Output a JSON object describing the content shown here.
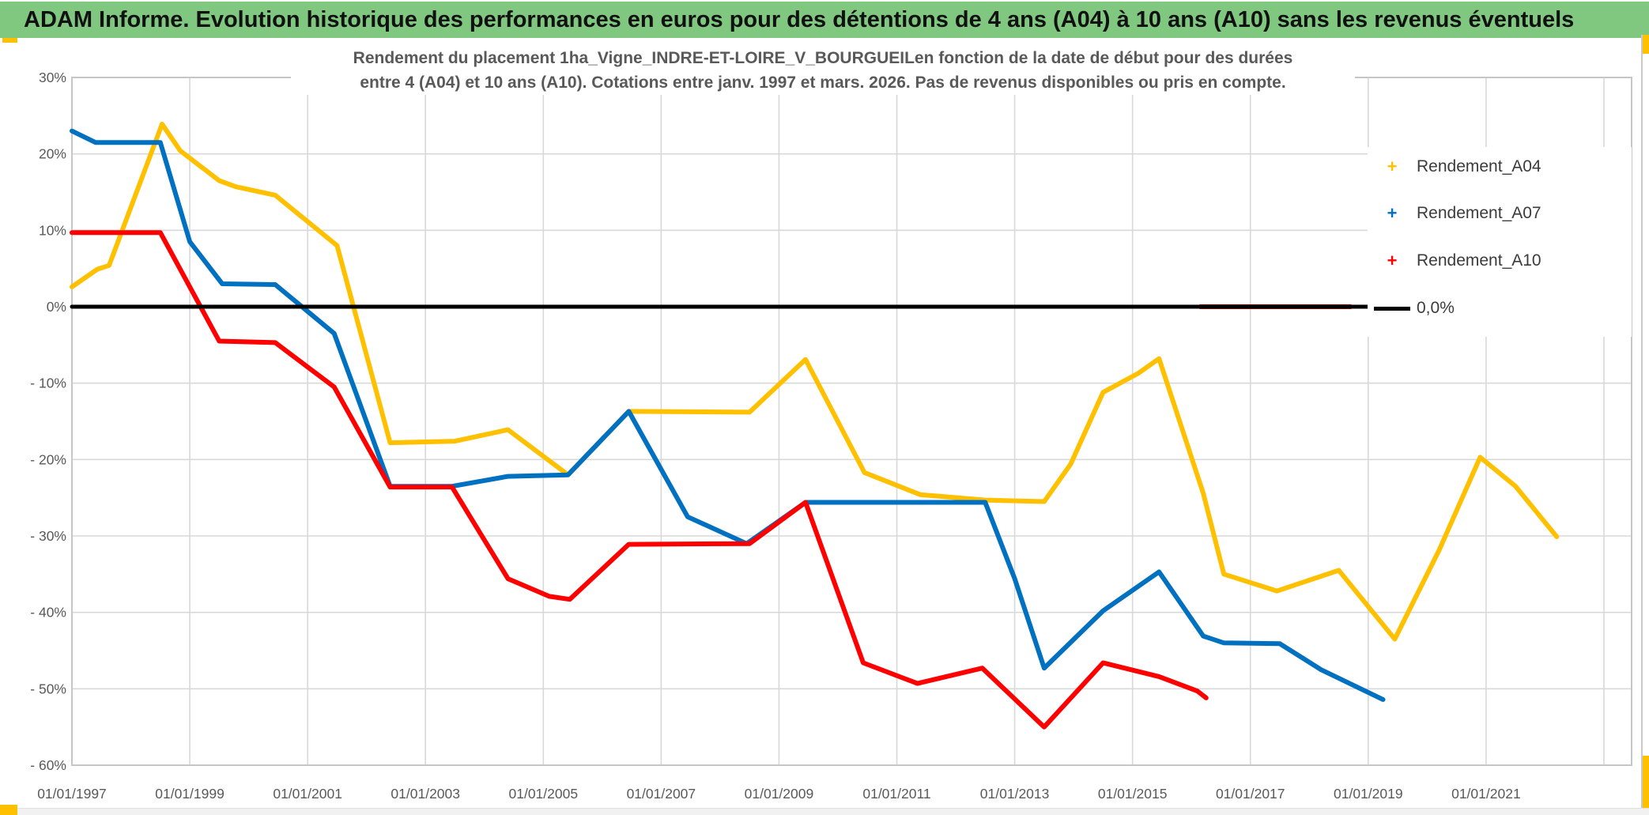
{
  "window": {
    "title": "ADAM Informe. Evolution historique des performances en euros pour des détentions de 4 ans (A04) à 10 ans (A10) sans les revenus éventuels"
  },
  "colors": {
    "banner_green": "#80C780",
    "accent_gold": "#FFC000",
    "grid": "#D8D8D8",
    "plot_border": "#C6C6C6",
    "tick_text": "#595959",
    "zero_line": "#000000"
  },
  "chart_data": {
    "type": "line",
    "title_lines": [
      "Rendement du placement 1ha_Vigne_INDRE-ET-LOIRE_V_BOURGUEILen fonction de la date de début pour des durées",
      "entre 4 (A04) et 10 ans (A10). Cotations entre janv. 1997 et mars. 2026. Pas de revenus disponibles ou pris en compte."
    ],
    "axis": {
      "x_min": 1997,
      "x_max": 2023.47,
      "y_min": -60,
      "y_max": 30,
      "grid_years": [
        1997,
        1999,
        2001,
        2003,
        2005,
        2007,
        2009,
        2011,
        2013,
        2015,
        2017,
        2019,
        2021,
        2023
      ],
      "grid_values": [
        30,
        20,
        10,
        0,
        -10,
        -20,
        -30,
        -40,
        -50,
        -60
      ],
      "grid_on": true
    },
    "x_ticks": [
      {
        "year": 1997,
        "label": "01/01/1997"
      },
      {
        "year": 1999,
        "label": "01/01/1999"
      },
      {
        "year": 2001,
        "label": "01/01/2001"
      },
      {
        "year": 2003,
        "label": "01/01/2003"
      },
      {
        "year": 2005,
        "label": "01/01/2005"
      },
      {
        "year": 2007,
        "label": "01/01/2007"
      },
      {
        "year": 2009,
        "label": "01/01/2009"
      },
      {
        "year": 2011,
        "label": "01/01/2011"
      },
      {
        "year": 2013,
        "label": "01/01/2013"
      },
      {
        "year": 2015,
        "label": "01/01/2015"
      },
      {
        "year": 2017,
        "label": "01/01/2017"
      },
      {
        "year": 2019,
        "label": "01/01/2019"
      },
      {
        "year": 2021,
        "label": "01/01/2021"
      }
    ],
    "y_ticks": [
      {
        "value": 30,
        "label": "30%"
      },
      {
        "value": 20,
        "label": "20%"
      },
      {
        "value": 10,
        "label": "10%"
      },
      {
        "value": 0,
        "label": "0%"
      },
      {
        "value": -10,
        "label": "- 10%"
      },
      {
        "value": -20,
        "label": "- 20%"
      },
      {
        "value": -30,
        "label": "- 30%"
      },
      {
        "value": -40,
        "label": "- 40%"
      },
      {
        "value": -50,
        "label": "- 50%"
      },
      {
        "value": -60,
        "label": "- 60%"
      }
    ],
    "series": [
      {
        "name": "Rendement_A04",
        "color": "#FFC000",
        "width": 6,
        "points": [
          [
            1997.0,
            2.6
          ],
          [
            1997.43,
            4.9
          ],
          [
            1997.63,
            5.4
          ],
          [
            1998.53,
            23.9
          ],
          [
            1998.84,
            20.4
          ],
          [
            1999.5,
            16.5
          ],
          [
            1999.78,
            15.7
          ],
          [
            2000.45,
            14.6
          ],
          [
            2001.5,
            8.0
          ],
          [
            2002.4,
            -17.8
          ],
          [
            2003.5,
            -17.6
          ],
          [
            2004.4,
            -16.1
          ],
          [
            2005.42,
            -22.0
          ],
          [
            2006.45,
            -13.7
          ],
          [
            2008.5,
            -13.8
          ],
          [
            2009.45,
            -6.9
          ],
          [
            2010.45,
            -21.7
          ],
          [
            2011.4,
            -24.6
          ],
          [
            2012.5,
            -25.3
          ],
          [
            2013.5,
            -25.5
          ],
          [
            2013.95,
            -20.6
          ],
          [
            2014.5,
            -11.2
          ],
          [
            2015.1,
            -8.7
          ],
          [
            2015.45,
            -6.8
          ],
          [
            2016.2,
            -24.4
          ],
          [
            2016.55,
            -35.0
          ],
          [
            2017.45,
            -37.2
          ],
          [
            2018.5,
            -34.5
          ],
          [
            2019.45,
            -43.5
          ],
          [
            2020.2,
            -31.9
          ],
          [
            2020.9,
            -19.7
          ],
          [
            2021.5,
            -23.5
          ],
          [
            2022.2,
            -30.1
          ]
        ]
      },
      {
        "name": "Rendement_A07",
        "color": "#0070C0",
        "width": 6,
        "points": [
          [
            1997.0,
            23.0
          ],
          [
            1997.4,
            21.5
          ],
          [
            1998.5,
            21.5
          ],
          [
            1999.0,
            8.5
          ],
          [
            1999.55,
            3.0
          ],
          [
            2000.45,
            2.9
          ],
          [
            2001.45,
            -3.5
          ],
          [
            2002.4,
            -23.5
          ],
          [
            2003.45,
            -23.5
          ],
          [
            2004.4,
            -22.2
          ],
          [
            2005.42,
            -22.0
          ],
          [
            2006.45,
            -13.7
          ],
          [
            2007.45,
            -27.5
          ],
          [
            2008.45,
            -31.0
          ],
          [
            2009.45,
            -25.6
          ],
          [
            2012.5,
            -25.6
          ],
          [
            2013.0,
            -35.6
          ],
          [
            2013.5,
            -47.3
          ],
          [
            2014.5,
            -39.8
          ],
          [
            2015.45,
            -34.7
          ],
          [
            2016.2,
            -43.1
          ],
          [
            2016.55,
            -44.0
          ],
          [
            2017.5,
            -44.1
          ],
          [
            2018.2,
            -47.5
          ],
          [
            2019.25,
            -51.4
          ]
        ]
      },
      {
        "name": "Rendement_A10",
        "color": "#FF0000",
        "width": 6,
        "points": [
          [
            1997.0,
            9.7
          ],
          [
            1998.5,
            9.7
          ],
          [
            1999.5,
            -4.5
          ],
          [
            2000.45,
            -4.7
          ],
          [
            2001.45,
            -10.5
          ],
          [
            2002.4,
            -23.6
          ],
          [
            2003.45,
            -23.6
          ],
          [
            2004.4,
            -35.6
          ],
          [
            2005.1,
            -37.9
          ],
          [
            2005.45,
            -38.3
          ],
          [
            2006.45,
            -31.1
          ],
          [
            2008.5,
            -31.0
          ],
          [
            2009.45,
            -25.6
          ],
          [
            2010.43,
            -46.6
          ],
          [
            2011.35,
            -49.3
          ],
          [
            2012.45,
            -47.3
          ],
          [
            2013.5,
            -55.0
          ],
          [
            2014.5,
            -46.6
          ],
          [
            2015.45,
            -48.4
          ],
          [
            2016.1,
            -50.3
          ],
          [
            2016.25,
            -51.2
          ]
        ],
        "zero_segment": [
          [
            2016.15,
            0
          ],
          [
            2018.7,
            0
          ]
        ],
        "isolated_points": [
          [
            2022.8,
            0
          ]
        ]
      },
      {
        "name": "0,0%",
        "color": "#000000",
        "width": 5,
        "points": [
          [
            1997.0,
            0
          ],
          [
            2019.76,
            0
          ]
        ]
      }
    ],
    "legend": {
      "position": "right",
      "items": [
        {
          "label": "Rendement_A04",
          "marker": "plus",
          "color": "#FFC000"
        },
        {
          "label": "Rendement_A07",
          "marker": "plus",
          "color": "#0070C0"
        },
        {
          "label": "Rendement_A10",
          "marker": "plus",
          "color": "#FF0000"
        },
        {
          "label": "0,0%",
          "marker": "line",
          "color": "#000000"
        }
      ]
    }
  }
}
